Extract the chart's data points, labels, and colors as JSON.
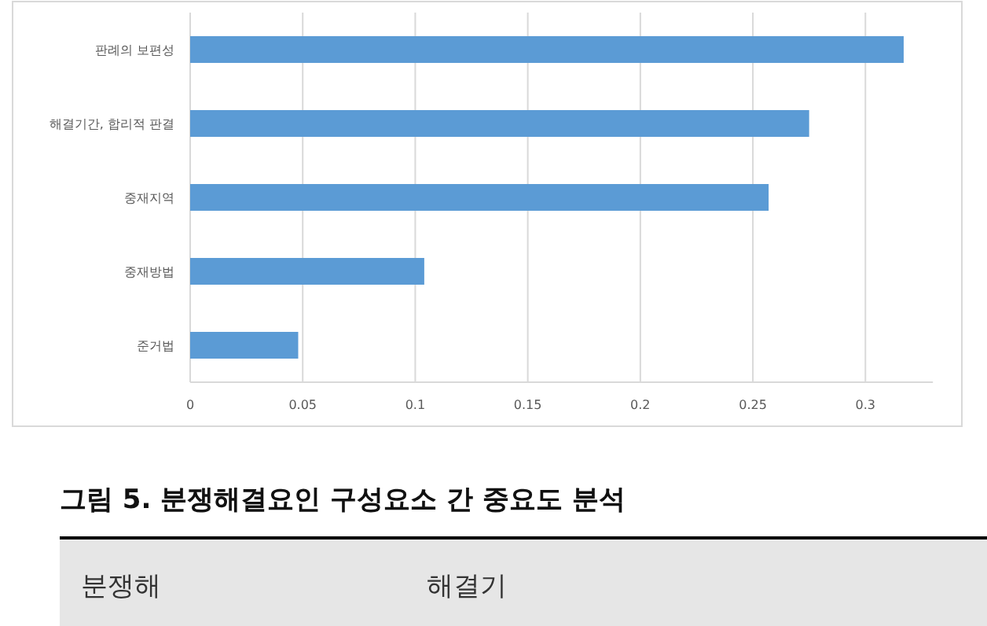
{
  "chart_data": {
    "type": "bar",
    "orientation": "horizontal",
    "title": "그림 5. 분쟁해결요인 구성요소 간 중요도 분석",
    "categories": [
      "판례의 보편성",
      "해결기간, 합리적 판결",
      "중재지역",
      "중재방법",
      "준거법"
    ],
    "values": [
      0.317,
      0.275,
      0.257,
      0.104,
      0.048
    ],
    "color": "#5b9bd5",
    "xlim": [
      0,
      0.33
    ],
    "xticks": [
      0,
      0.05,
      0.1,
      0.15,
      0.2,
      0.25,
      0.3
    ],
    "grid": "x",
    "annotations": [
      "분쟁해",
      "해결기"
    ]
  }
}
